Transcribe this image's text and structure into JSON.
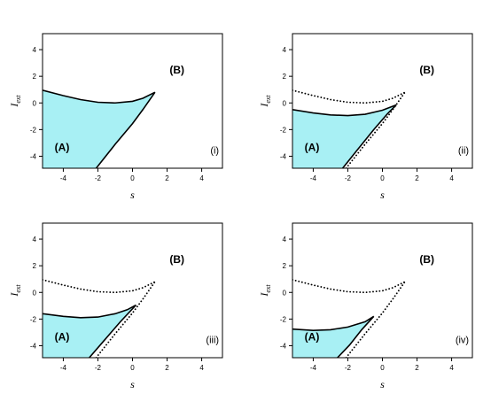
{
  "chart_data": [
    {
      "type": "line",
      "xlabel": "s",
      "ylabel_main": "I",
      "ylabel_sub": "ext",
      "xlim": [
        -5.2,
        5.2
      ],
      "ylim": [
        -4.9,
        5.2
      ],
      "xticks": [
        -4,
        -2,
        0,
        2,
        4
      ],
      "yticks": [
        -4,
        -2,
        0,
        2,
        4
      ],
      "region_labels": [
        {
          "text": "(A)",
          "x": -4.5,
          "y": -3.6
        },
        {
          "text": "(B)",
          "x": 3.0,
          "y": 2.2
        }
      ],
      "panel_label": {
        "text": "(i)",
        "x": 5.0,
        "y": -3.8
      },
      "series": [
        {
          "style": "solid",
          "fill": "#a8f0f4",
          "points": [
            [
              -5.2,
              0.95
            ],
            [
              -4,
              0.55
            ],
            [
              -3,
              0.25
            ],
            [
              -2,
              0.05
            ],
            [
              -1,
              0.0
            ],
            [
              0,
              0.12
            ],
            [
              0.6,
              0.35
            ],
            [
              1.3,
              0.8
            ]
          ]
        },
        {
          "style": "solid",
          "points": [
            [
              -2.1,
              -4.9
            ],
            [
              -1,
              -3.1
            ],
            [
              0,
              -1.55
            ],
            [
              0.6,
              -0.5
            ],
            [
              1.3,
              0.8
            ]
          ]
        }
      ]
    },
    {
      "type": "line",
      "xlabel": "s",
      "ylabel_main": "I",
      "ylabel_sub": "ext",
      "xlim": [
        -5.2,
        5.2
      ],
      "ylim": [
        -4.9,
        5.2
      ],
      "xticks": [
        -4,
        -2,
        0,
        2,
        4
      ],
      "yticks": [
        -4,
        -2,
        0,
        2,
        4
      ],
      "region_labels": [
        {
          "text": "(A)",
          "x": -4.5,
          "y": -3.6
        },
        {
          "text": "(B)",
          "x": 3.0,
          "y": 2.2
        }
      ],
      "panel_label": {
        "text": "(ii)",
        "x": 5.0,
        "y": -3.8
      },
      "series": [
        {
          "style": "dotted",
          "points": [
            [
              -5.2,
              0.95
            ],
            [
              -4,
              0.55
            ],
            [
              -3,
              0.25
            ],
            [
              -2,
              0.05
            ],
            [
              -1,
              0.0
            ],
            [
              0,
              0.12
            ],
            [
              0.6,
              0.35
            ],
            [
              1.3,
              0.8
            ]
          ]
        },
        {
          "style": "dotted",
          "points": [
            [
              -2.1,
              -4.9
            ],
            [
              -1,
              -3.1
            ],
            [
              0,
              -1.55
            ],
            [
              0.6,
              -0.5
            ],
            [
              1.3,
              0.8
            ]
          ]
        },
        {
          "style": "solid",
          "fill": "#a8f0f4",
          "points": [
            [
              -5.2,
              -0.5
            ],
            [
              -4,
              -0.75
            ],
            [
              -3,
              -0.9
            ],
            [
              -2,
              -0.95
            ],
            [
              -1,
              -0.85
            ],
            [
              0,
              -0.55
            ],
            [
              0.8,
              -0.15
            ]
          ]
        },
        {
          "style": "solid",
          "points": [
            [
              -2.3,
              -4.9
            ],
            [
              -1.5,
              -3.6
            ],
            [
              -0.5,
              -2.0
            ],
            [
              0.3,
              -0.8
            ],
            [
              0.8,
              -0.15
            ]
          ]
        }
      ]
    },
    {
      "type": "line",
      "xlabel": "s",
      "ylabel_main": "I",
      "ylabel_sub": "ext",
      "xlim": [
        -5.2,
        5.2
      ],
      "ylim": [
        -4.9,
        5.2
      ],
      "xticks": [
        -4,
        -2,
        0,
        2,
        4
      ],
      "yticks": [
        -4,
        -2,
        0,
        2,
        4
      ],
      "region_labels": [
        {
          "text": "(A)",
          "x": -4.5,
          "y": -3.6
        },
        {
          "text": "(B)",
          "x": 3.0,
          "y": 2.2
        }
      ],
      "panel_label": {
        "text": "(iii)",
        "x": 5.0,
        "y": -3.8
      },
      "series": [
        {
          "style": "dotted",
          "points": [
            [
              -5.2,
              0.95
            ],
            [
              -4,
              0.55
            ],
            [
              -3,
              0.25
            ],
            [
              -2,
              0.05
            ],
            [
              -1,
              0.0
            ],
            [
              0,
              0.12
            ],
            [
              0.6,
              0.35
            ],
            [
              1.3,
              0.8
            ]
          ]
        },
        {
          "style": "dotted",
          "points": [
            [
              -2.1,
              -4.9
            ],
            [
              -1,
              -3.1
            ],
            [
              0,
              -1.55
            ],
            [
              0.6,
              -0.5
            ],
            [
              1.3,
              0.8
            ]
          ]
        },
        {
          "style": "solid",
          "fill": "#a8f0f4",
          "points": [
            [
              -5.2,
              -1.6
            ],
            [
              -4,
              -1.8
            ],
            [
              -3,
              -1.9
            ],
            [
              -2,
              -1.85
            ],
            [
              -1,
              -1.6
            ],
            [
              -0.3,
              -1.3
            ],
            [
              0.2,
              -0.95
            ]
          ]
        },
        {
          "style": "solid",
          "points": [
            [
              -2.5,
              -4.9
            ],
            [
              -1.6,
              -3.55
            ],
            [
              -0.7,
              -2.2
            ],
            [
              0.2,
              -0.95
            ]
          ]
        }
      ]
    },
    {
      "type": "line",
      "xlabel": "s",
      "ylabel_main": "I",
      "ylabel_sub": "ext",
      "xlim": [
        -5.2,
        5.2
      ],
      "ylim": [
        -4.9,
        5.2
      ],
      "xticks": [
        -4,
        -2,
        0,
        2,
        4
      ],
      "yticks": [
        -4,
        -2,
        0,
        2,
        4
      ],
      "region_labels": [
        {
          "text": "(A)",
          "x": -4.5,
          "y": -3.6
        },
        {
          "text": "(B)",
          "x": 3.0,
          "y": 2.2
        }
      ],
      "panel_label": {
        "text": "(iv)",
        "x": 5.0,
        "y": -3.8
      },
      "series": [
        {
          "style": "dotted",
          "points": [
            [
              -5.2,
              0.95
            ],
            [
              -4,
              0.55
            ],
            [
              -3,
              0.25
            ],
            [
              -2,
              0.05
            ],
            [
              -1,
              0.0
            ],
            [
              0,
              0.12
            ],
            [
              0.6,
              0.35
            ],
            [
              1.3,
              0.8
            ]
          ]
        },
        {
          "style": "dotted",
          "points": [
            [
              -2.1,
              -4.9
            ],
            [
              -1,
              -3.1
            ],
            [
              0,
              -1.55
            ],
            [
              0.6,
              -0.5
            ],
            [
              1.3,
              0.8
            ]
          ]
        },
        {
          "style": "solid",
          "fill": "#a8f0f4",
          "points": [
            [
              -5.2,
              -2.75
            ],
            [
              -4,
              -2.85
            ],
            [
              -3,
              -2.8
            ],
            [
              -2,
              -2.6
            ],
            [
              -1,
              -2.2
            ],
            [
              -0.5,
              -1.8
            ]
          ]
        },
        {
          "style": "solid",
          "points": [
            [
              -2.6,
              -4.9
            ],
            [
              -1.9,
              -3.95
            ],
            [
              -1.2,
              -2.8
            ],
            [
              -0.5,
              -1.8
            ]
          ]
        }
      ]
    }
  ]
}
